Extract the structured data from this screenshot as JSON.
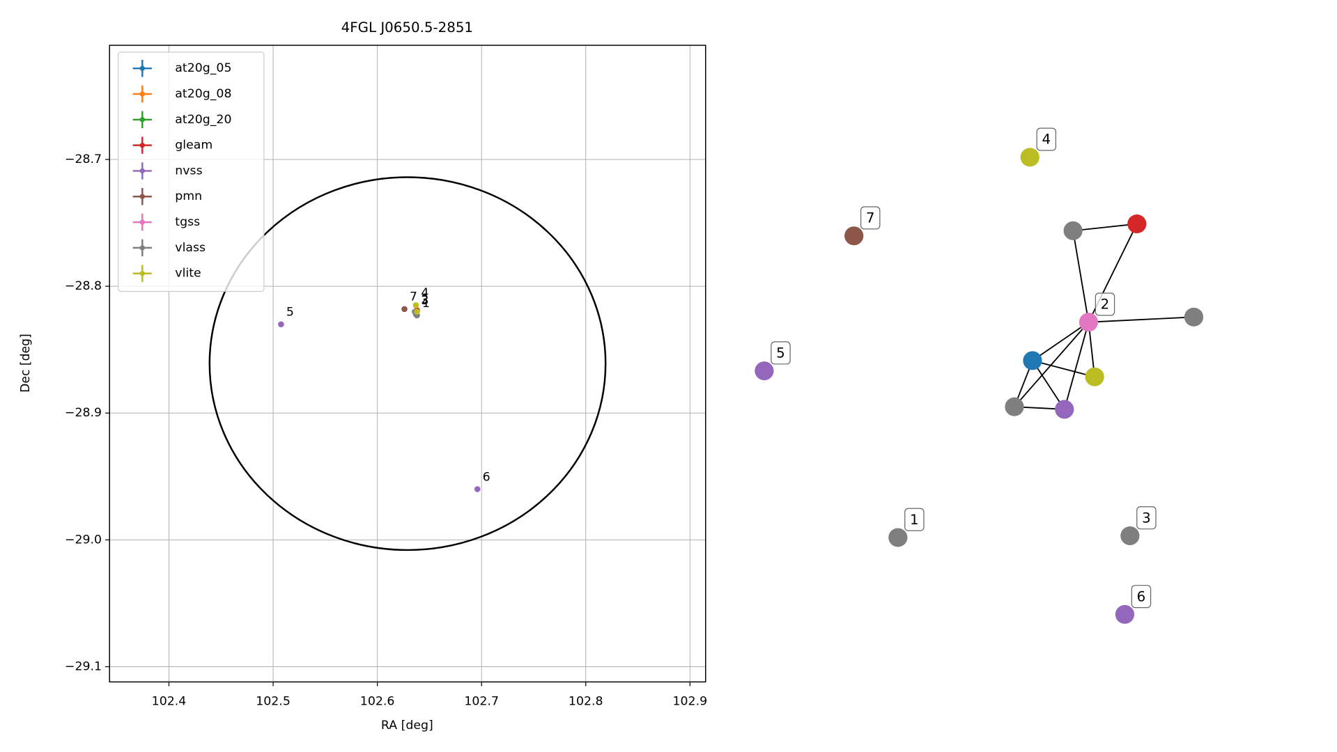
{
  "chart_data": [
    {
      "type": "scatter",
      "title": "4FGL J0650.5-2851",
      "x_label": "RA [deg]",
      "y_label": "Dec [deg]",
      "xlim": [
        102.343,
        102.915
      ],
      "ylim": [
        -29.112,
        -28.61
      ],
      "xticks": [
        102.4,
        102.5,
        102.6,
        102.7,
        102.8,
        102.9
      ],
      "yticks": [
        {
          "value": -28.7,
          "label": "−28.7"
        },
        {
          "value": -28.8,
          "label": "−28.8"
        },
        {
          "value": -28.9,
          "label": "−28.9"
        },
        {
          "value": -29.0,
          "label": "−29.0"
        },
        {
          "value": -29.1,
          "label": "−29.1"
        }
      ],
      "grid": true,
      "legend": "upper left",
      "ellipse": {
        "x": 102.629,
        "y": -28.861,
        "rx": 0.19,
        "ry": 0.147
      },
      "series": [
        {
          "name": "at20g_05",
          "color": "#1f77b4",
          "x": [
            102.637
          ],
          "y": [
            -28.821
          ],
          "labels": [
            null
          ]
        },
        {
          "name": "at20g_08",
          "color": "#ff7f0e",
          "x": [],
          "y": [],
          "labels": []
        },
        {
          "name": "at20g_20",
          "color": "#2ca02c",
          "x": [],
          "y": [],
          "labels": []
        },
        {
          "name": "gleam",
          "color": "#d62728",
          "x": [
            102.638
          ],
          "y": [
            -28.819
          ],
          "labels": [
            null
          ]
        },
        {
          "name": "nvss",
          "color": "#9467bd",
          "x": [
            102.5076,
            102.696,
            102.637
          ],
          "y": [
            -28.83,
            -28.96,
            -28.822
          ],
          "labels": [
            "5",
            "6",
            null
          ]
        },
        {
          "name": "pmn",
          "color": "#8c564b",
          "x": [
            102.626
          ],
          "y": [
            -28.818
          ],
          "labels": [
            "7"
          ]
        },
        {
          "name": "tgss",
          "color": "#e377c2",
          "x": [
            102.637
          ],
          "y": [
            -28.82
          ],
          "labels": [
            "2"
          ]
        },
        {
          "name": "vlass",
          "color": "#7f7f7f",
          "x": [
            102.638,
            102.637,
            102.636
          ],
          "y": [
            -28.823,
            -28.821,
            -28.82
          ],
          "labels": [
            "1",
            "3",
            null
          ]
        },
        {
          "name": "vlite",
          "color": "#bcbd22",
          "x": [
            102.637,
            102.638
          ],
          "y": [
            -28.815,
            -28.82
          ],
          "labels": [
            "4",
            null
          ]
        }
      ]
    },
    {
      "type": "network",
      "nodes": [
        {
          "label": "4",
          "color": "#bcbd22"
        },
        {
          "label": "7",
          "color": "#8c564b"
        },
        {
          "label": null,
          "color": "#7f7f7f"
        },
        {
          "label": null,
          "color": "#d62728"
        },
        {
          "label": null,
          "color": "#7f7f7f"
        },
        {
          "label": "2",
          "color": "#e377c2"
        },
        {
          "label": "5",
          "color": "#9467bd"
        },
        {
          "label": null,
          "color": "#1f77b4"
        },
        {
          "label": null,
          "color": "#bcbd22"
        },
        {
          "label": null,
          "color": "#7f7f7f"
        },
        {
          "label": null,
          "color": "#9467bd"
        },
        {
          "label": "1",
          "color": "#7f7f7f"
        },
        {
          "label": "3",
          "color": "#7f7f7f"
        },
        {
          "label": "6",
          "color": "#9467bd"
        }
      ],
      "edges": [
        [
          2,
          3
        ],
        [
          2,
          5
        ],
        [
          3,
          5
        ],
        [
          5,
          4
        ],
        [
          5,
          7
        ],
        [
          5,
          8
        ],
        [
          5,
          9
        ],
        [
          5,
          10
        ],
        [
          7,
          8
        ],
        [
          7,
          9
        ],
        [
          7,
          10
        ],
        [
          9,
          10
        ]
      ]
    }
  ]
}
